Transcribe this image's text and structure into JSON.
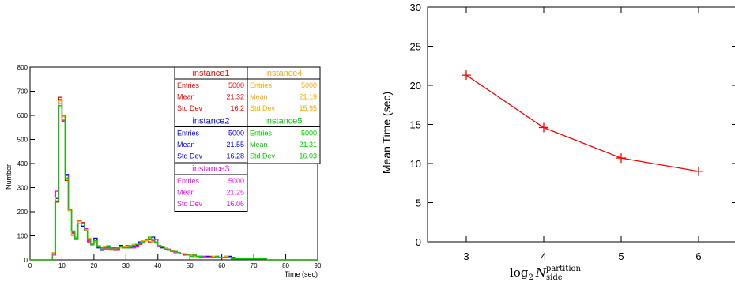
{
  "chart_data": [
    {
      "type": "step-histogram",
      "xlabel": "Time (sec)",
      "ylabel": "Number",
      "xlim": [
        0,
        90
      ],
      "ylim": [
        0,
        800
      ],
      "x_ticks": [
        "0",
        "10",
        "20",
        "30",
        "40",
        "50",
        "60",
        "70",
        "80",
        "90"
      ],
      "y_ticks": [
        "0",
        "100",
        "200",
        "300",
        "400",
        "500",
        "600",
        "700",
        "800"
      ],
      "bin_width": 1,
      "grid": false,
      "series": [
        {
          "name": "instance1",
          "color": "#ff0000",
          "values": [
            0,
            0,
            0,
            0,
            0,
            0,
            0,
            30,
            240,
            675,
            580,
            330,
            210,
            115,
            90,
            165,
            155,
            120,
            75,
            60,
            90,
            55,
            45,
            55,
            50,
            40,
            50,
            45,
            55,
            50,
            55,
            50,
            60,
            55,
            65,
            70,
            80,
            75,
            80,
            70,
            60,
            55,
            45,
            40,
            35,
            35,
            30,
            25,
            20,
            20,
            20,
            15,
            15,
            15,
            10,
            10,
            15,
            10,
            10,
            10,
            10,
            10,
            10,
            5,
            5,
            5,
            5,
            5,
            5,
            5,
            5,
            5,
            5,
            5,
            0,
            0,
            0,
            0,
            0,
            0,
            0,
            0,
            0,
            0,
            0,
            0,
            0,
            0,
            0,
            0
          ]
        },
        {
          "name": "instance2",
          "color": "#0000ff",
          "values": [
            0,
            0,
            0,
            0,
            0,
            0,
            0,
            25,
            255,
            665,
            595,
            355,
            205,
            110,
            95,
            160,
            140,
            125,
            85,
            65,
            90,
            50,
            40,
            50,
            55,
            45,
            40,
            50,
            60,
            55,
            50,
            55,
            55,
            60,
            75,
            80,
            85,
            85,
            95,
            75,
            60,
            50,
            45,
            40,
            40,
            35,
            30,
            25,
            25,
            20,
            20,
            15,
            15,
            15,
            10,
            15,
            10,
            10,
            10,
            10,
            10,
            15,
            15,
            10,
            5,
            5,
            5,
            5,
            5,
            5,
            5,
            5,
            5,
            5,
            0,
            0,
            0,
            0,
            0,
            0,
            0,
            0,
            0,
            0,
            0,
            0,
            0,
            0,
            0,
            0
          ]
        },
        {
          "name": "instance3",
          "color": "#ff00ff",
          "values": [
            0,
            0,
            0,
            0,
            0,
            0,
            0,
            20,
            285,
            650,
            575,
            350,
            205,
            110,
            85,
            150,
            150,
            130,
            80,
            70,
            80,
            55,
            50,
            45,
            45,
            50,
            45,
            40,
            55,
            55,
            60,
            55,
            50,
            55,
            70,
            75,
            80,
            90,
            80,
            85,
            55,
            55,
            45,
            45,
            35,
            30,
            30,
            25,
            25,
            20,
            15,
            20,
            15,
            10,
            15,
            10,
            10,
            10,
            15,
            10,
            10,
            10,
            10,
            5,
            5,
            5,
            5,
            5,
            5,
            5,
            5,
            5,
            5,
            5,
            0,
            0,
            0,
            0,
            0,
            0,
            0,
            0,
            0,
            0,
            0,
            0,
            0,
            0,
            0,
            0
          ]
        },
        {
          "name": "instance4",
          "color": "#ffaa00",
          "values": [
            0,
            0,
            0,
            0,
            0,
            0,
            0,
            30,
            260,
            660,
            595,
            340,
            205,
            100,
            95,
            160,
            150,
            125,
            90,
            60,
            75,
            60,
            45,
            55,
            60,
            40,
            45,
            50,
            50,
            55,
            55,
            60,
            65,
            65,
            70,
            80,
            80,
            90,
            75,
            70,
            60,
            55,
            50,
            40,
            40,
            35,
            30,
            25,
            25,
            20,
            20,
            15,
            15,
            15,
            10,
            10,
            10,
            15,
            10,
            10,
            10,
            15,
            10,
            5,
            5,
            5,
            5,
            5,
            5,
            5,
            5,
            5,
            5,
            5,
            0,
            0,
            0,
            0,
            0,
            0,
            0,
            0,
            0,
            0,
            0,
            0,
            0,
            0,
            0,
            0
          ]
        },
        {
          "name": "instance5",
          "color": "#00cc00",
          "values": [
            0,
            0,
            0,
            0,
            0,
            0,
            0,
            25,
            245,
            640,
            600,
            340,
            210,
            120,
            90,
            150,
            150,
            120,
            85,
            65,
            80,
            55,
            45,
            50,
            55,
            45,
            45,
            50,
            55,
            50,
            50,
            55,
            60,
            65,
            70,
            75,
            85,
            95,
            85,
            75,
            60,
            55,
            45,
            40,
            35,
            35,
            30,
            25,
            25,
            20,
            15,
            20,
            15,
            15,
            10,
            10,
            10,
            10,
            15,
            10,
            10,
            10,
            10,
            5,
            5,
            5,
            5,
            5,
            5,
            5,
            5,
            5,
            5,
            5,
            0,
            0,
            0,
            0,
            0,
            0,
            0,
            0,
            0,
            0,
            0,
            0,
            0,
            0,
            0,
            0
          ]
        }
      ],
      "stats": [
        {
          "name": "instance1",
          "color": "#ff0000",
          "entries": "5000",
          "mean": "21.32",
          "std": "16.2"
        },
        {
          "name": "instance2",
          "color": "#0000ff",
          "entries": "5000",
          "mean": "21.55",
          "std": "16.28"
        },
        {
          "name": "instance3",
          "color": "#ff00ff",
          "entries": "5000",
          "mean": "21.25",
          "std": "16.06"
        },
        {
          "name": "instance4",
          "color": "#ffaa00",
          "entries": "5000",
          "mean": "21.19",
          "std": "15.95"
        },
        {
          "name": "instance5",
          "color": "#00cc00",
          "entries": "5000",
          "mean": "21.31",
          "std": "16.03"
        }
      ],
      "stat_labels": {
        "entries": "Entries",
        "mean": "Mean",
        "std": "Std Dev"
      }
    },
    {
      "type": "line",
      "xlabel_base": "log",
      "xlabel_sub": "2",
      "xlabel_var": "N",
      "xlabel_sup": "partition",
      "xlabel_subvar": "side",
      "ylabel": "Mean Time (sec)",
      "x": [
        3,
        4,
        5,
        6
      ],
      "y": [
        21.3,
        14.6,
        10.7,
        9.0
      ],
      "xlim": [
        2.5,
        6.5
      ],
      "ylim": [
        0,
        30
      ],
      "x_ticks": [
        "3",
        "4",
        "5",
        "6"
      ],
      "y_ticks": [
        "0",
        "5",
        "10",
        "15",
        "20",
        "25",
        "30"
      ],
      "color": "#ff0000",
      "marker": "plus",
      "grid": false
    }
  ]
}
